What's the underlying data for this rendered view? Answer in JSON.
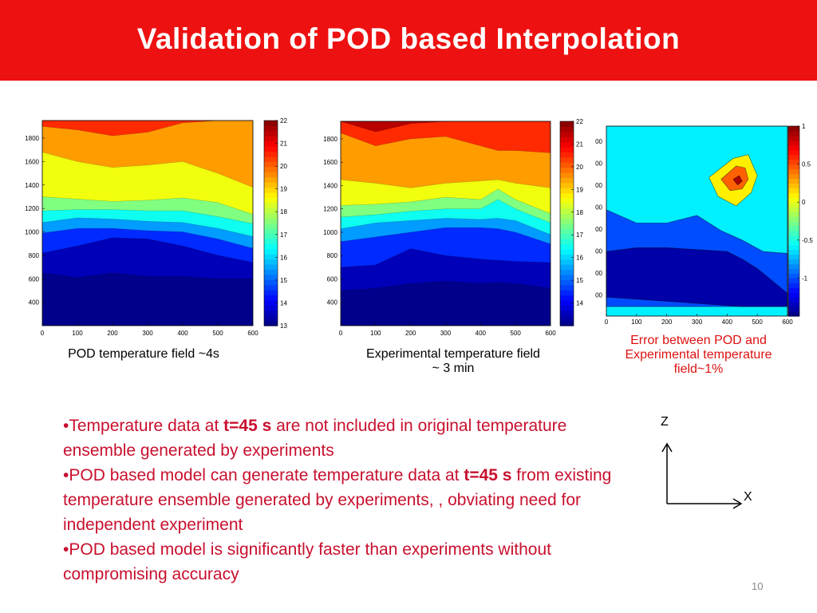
{
  "slide": {
    "title": "Validation of POD based Interpolation",
    "page_number": "10"
  },
  "captions": {
    "pod": "POD temperature field ~4s",
    "exp_line1": "Experimental temperature field",
    "exp_line2": "~ 3 min",
    "err_line1": "Error between POD and",
    "err_line2": "Experimental temperature",
    "err_line3": "field~1%"
  },
  "bullets": [
    {
      "prefix": "•Temperature data at ",
      "bold": "t=45 s",
      "suffix": " are not included in original temperature ensemble generated by experiments"
    },
    {
      "prefix": "•POD based model can generate temperature data at ",
      "bold": "t=45 s",
      "suffix": " from existing  temperature ensemble generated by experiments, , obviating need for independent experiment"
    },
    {
      "prefix": "•POD based model is significantly faster than experiments without compromising accuracy",
      "bold": "",
      "suffix": ""
    }
  ],
  "axes_icon": {
    "z_label": "Z",
    "x_label": "X"
  },
  "colors": {
    "title_bar": "#ee1111",
    "bullet_text": "#c8102e",
    "caption_red": "#dd1111"
  },
  "chart_data": [
    {
      "type": "heatmap",
      "title": "",
      "xlabel": "",
      "ylabel": "",
      "xlim": [
        0,
        600
      ],
      "ylim": [
        200,
        1950
      ],
      "x_ticks": [
        0,
        100,
        200,
        300,
        400,
        500,
        600
      ],
      "y_ticks": [
        400,
        600,
        800,
        1000,
        1200,
        1400,
        1600,
        1800
      ],
      "colorbar": {
        "min": 13,
        "max": 22,
        "ticks": [
          13,
          14,
          15,
          16,
          17,
          18,
          19,
          20,
          21,
          22
        ]
      },
      "x": [
        0,
        100,
        200,
        300,
        400,
        500,
        600
      ],
      "levels": [
        {
          "value": 21.5,
          "y": [
            1950,
            1950,
            1950,
            1950,
            1950,
            1950,
            1950
          ]
        },
        {
          "value": 20.5,
          "y": [
            1900,
            1870,
            1820,
            1850,
            1930,
            1950,
            1950
          ]
        },
        {
          "value": 19.5,
          "y": [
            1680,
            1600,
            1550,
            1570,
            1600,
            1500,
            1380
          ]
        },
        {
          "value": 18.5,
          "y": [
            1300,
            1280,
            1260,
            1270,
            1290,
            1250,
            1150
          ]
        },
        {
          "value": 17.5,
          "y": [
            1180,
            1190,
            1190,
            1180,
            1180,
            1130,
            1070
          ]
        },
        {
          "value": 16.5,
          "y": [
            1080,
            1120,
            1110,
            1090,
            1080,
            1030,
            960
          ]
        },
        {
          "value": 15.5,
          "y": [
            990,
            1030,
            1030,
            1010,
            1000,
            940,
            860
          ]
        },
        {
          "value": 14.5,
          "y": [
            820,
            880,
            950,
            940,
            880,
            800,
            740
          ]
        },
        {
          "value": 13.5,
          "y": [
            650,
            610,
            650,
            620,
            620,
            600,
            600
          ]
        }
      ]
    },
    {
      "type": "heatmap",
      "title": "",
      "xlabel": "",
      "ylabel": "",
      "xlim": [
        0,
        600
      ],
      "ylim": [
        200,
        1950
      ],
      "x_ticks": [
        0,
        100,
        200,
        300,
        400,
        500,
        600
      ],
      "y_ticks": [
        400,
        600,
        800,
        1000,
        1200,
        1400,
        1600,
        1800
      ],
      "colorbar": {
        "min": 13,
        "max": 22,
        "ticks": [
          14,
          15,
          16,
          17,
          18,
          19,
          20,
          21,
          22
        ]
      },
      "x": [
        0,
        100,
        200,
        300,
        400,
        450,
        500,
        600
      ],
      "levels": [
        {
          "value": 21.5,
          "y": [
            1950,
            1860,
            1930,
            1950,
            1950,
            1950,
            1950,
            1950
          ]
        },
        {
          "value": 20.5,
          "y": [
            1850,
            1740,
            1800,
            1820,
            1740,
            1700,
            1700,
            1680
          ]
        },
        {
          "value": 19.5,
          "y": [
            1450,
            1420,
            1380,
            1420,
            1440,
            1450,
            1420,
            1380
          ]
        },
        {
          "value": 18.5,
          "y": [
            1230,
            1240,
            1260,
            1300,
            1280,
            1370,
            1280,
            1160
          ]
        },
        {
          "value": 17.5,
          "y": [
            1130,
            1150,
            1180,
            1200,
            1200,
            1280,
            1200,
            1080
          ]
        },
        {
          "value": 16.5,
          "y": [
            1030,
            1080,
            1100,
            1120,
            1110,
            1120,
            1100,
            980
          ]
        },
        {
          "value": 15.5,
          "y": [
            920,
            960,
            1000,
            1040,
            1040,
            1030,
            1000,
            900
          ]
        },
        {
          "value": 14.5,
          "y": [
            700,
            720,
            860,
            800,
            770,
            760,
            750,
            740
          ]
        },
        {
          "value": 13.5,
          "y": [
            500,
            520,
            560,
            580,
            560,
            570,
            560,
            520
          ]
        }
      ]
    },
    {
      "type": "heatmap",
      "title": "",
      "xlabel": "",
      "ylabel": "",
      "xlim": [
        0,
        600
      ],
      "ylim": [
        0,
        1
      ],
      "x_ticks": [
        0,
        100,
        200,
        300,
        400,
        500,
        600
      ],
      "y_tick_labels_left": [
        "00",
        "00",
        "00",
        "00",
        "00",
        "00",
        "00",
        "00"
      ],
      "colorbar": {
        "min": -1.5,
        "max": 1.0,
        "ticks": [
          1,
          0.5,
          0,
          -0.5,
          -1
        ],
        "tick_labels": [
          "1",
          "0.5",
          "0",
          "-0.5",
          "-1"
        ]
      },
      "background_value": -0.6,
      "regions": [
        {
          "value": -1.0,
          "points": [
            [
              0,
              0.56
            ],
            [
              100,
              0.49
            ],
            [
              200,
              0.49
            ],
            [
              300,
              0.53
            ],
            [
              380,
              0.45
            ],
            [
              450,
              0.4
            ],
            [
              520,
              0.34
            ],
            [
              600,
              0.33
            ],
            [
              600,
              0.05
            ],
            [
              0,
              0.05
            ]
          ]
        },
        {
          "value": -1.4,
          "points": [
            [
              0,
              0.34
            ],
            [
              100,
              0.36
            ],
            [
              200,
              0.36
            ],
            [
              300,
              0.35
            ],
            [
              400,
              0.34
            ],
            [
              450,
              0.3
            ],
            [
              500,
              0.25
            ],
            [
              600,
              0.12
            ],
            [
              600,
              0.05
            ],
            [
              450,
              0.05
            ],
            [
              0,
              0.1
            ]
          ]
        },
        {
          "value": 0.1,
          "points": [
            [
              340,
              0.73
            ],
            [
              420,
              0.83
            ],
            [
              470,
              0.85
            ],
            [
              500,
              0.74
            ],
            [
              480,
              0.65
            ],
            [
              430,
              0.58
            ],
            [
              370,
              0.63
            ]
          ]
        },
        {
          "value": 0.45,
          "points": [
            [
              380,
              0.72
            ],
            [
              430,
              0.79
            ],
            [
              460,
              0.78
            ],
            [
              470,
              0.72
            ],
            [
              450,
              0.67
            ],
            [
              410,
              0.66
            ]
          ]
        },
        {
          "value": 0.9,
          "points": [
            [
              420,
              0.72
            ],
            [
              440,
              0.74
            ],
            [
              450,
              0.71
            ],
            [
              435,
              0.69
            ]
          ]
        }
      ]
    }
  ]
}
